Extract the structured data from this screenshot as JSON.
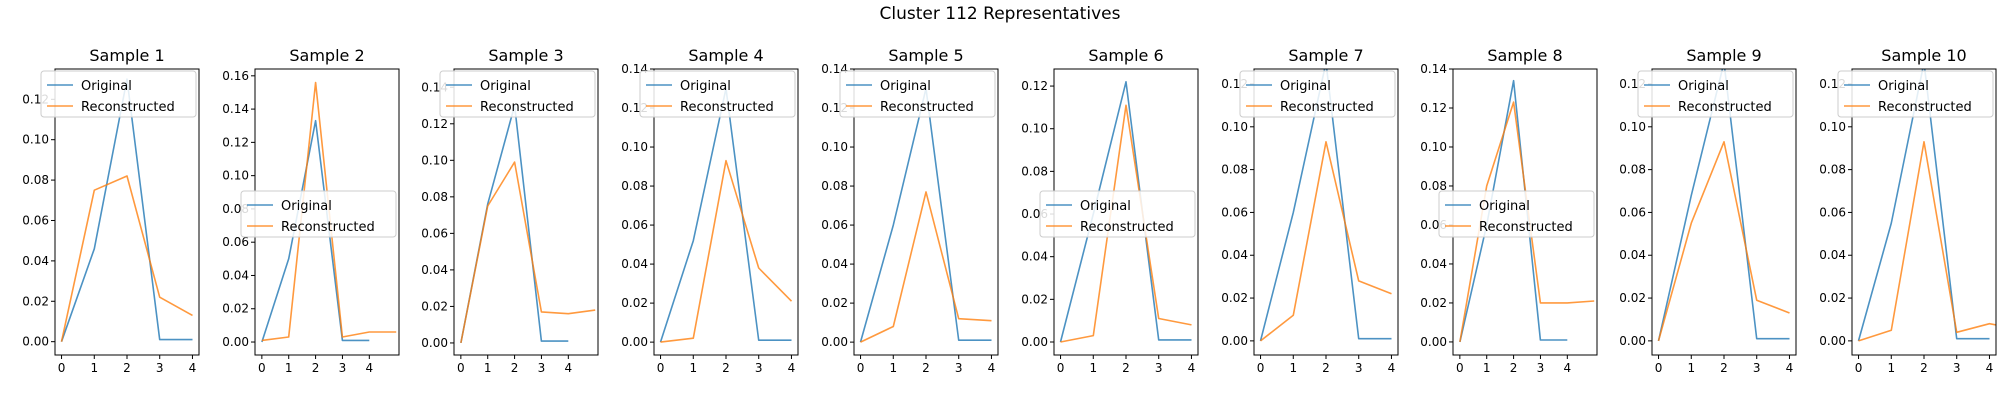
{
  "figure": {
    "title": "Cluster 112 Representatives"
  },
  "colors": {
    "original": "#1f77b4",
    "reconstructed": "#ff7f0e",
    "axes": "#000000",
    "legend_border": "#cccccc"
  },
  "chart_data": [
    {
      "type": "line",
      "title": "Sample 1",
      "legend_position": "upper left",
      "xlim": [
        -0.2,
        4.2
      ],
      "ylim": [
        -0.0066,
        0.135
      ],
      "x_ticks": [
        0,
        1,
        2,
        3,
        4
      ],
      "y_ticks": [
        0.0,
        0.02,
        0.04,
        0.06,
        0.08,
        0.1,
        0.12
      ],
      "y_tick_labels": [
        "0.00",
        "0.02",
        "0.04",
        "0.06",
        "0.08",
        "0.10",
        "0.12"
      ],
      "series": [
        {
          "name": "Original",
          "x": [
            0,
            1,
            2,
            3,
            4
          ],
          "values": [
            0.0,
            0.046,
            0.13,
            0.001,
            0.001
          ]
        },
        {
          "name": "Reconstructed",
          "x": [
            0,
            1,
            2,
            3,
            4
          ],
          "values": [
            0.0,
            0.075,
            0.082,
            0.022,
            0.013
          ]
        }
      ]
    },
    {
      "type": "line",
      "title": "Sample 2",
      "legend_position": "center left",
      "xlim": [
        -0.255,
        5.105
      ],
      "ylim": [
        -0.0078,
        0.1641
      ],
      "x_ticks": [
        0,
        1,
        2,
        3,
        4
      ],
      "y_ticks": [
        0.0,
        0.02,
        0.04,
        0.06,
        0.08,
        0.1,
        0.12,
        0.14,
        0.16
      ],
      "y_tick_labels": [
        "0.00",
        "0.02",
        "0.04",
        "0.06",
        "0.08",
        "0.10",
        "0.12",
        "0.14",
        "0.16"
      ],
      "series": [
        {
          "name": "Original",
          "x": [
            0,
            1,
            2,
            3,
            4
          ],
          "values": [
            0.0,
            0.05,
            0.133,
            0.001,
            0.001
          ]
        },
        {
          "name": "Reconstructed",
          "x": [
            0,
            1,
            2,
            3,
            4,
            5
          ],
          "values": [
            0.001,
            0.003,
            0.156,
            0.003,
            0.006,
            0.006
          ]
        }
      ]
    },
    {
      "type": "line",
      "title": "Sample 3",
      "legend_position": "upper left",
      "xlim": [
        -0.255,
        5.105
      ],
      "ylim": [
        -0.0066,
        0.15
      ],
      "x_ticks": [
        0,
        1,
        2,
        3,
        4
      ],
      "y_ticks": [
        0.0,
        0.02,
        0.04,
        0.06,
        0.08,
        0.1,
        0.12,
        0.14
      ],
      "y_tick_labels": [
        "0.00",
        "0.02",
        "0.04",
        "0.06",
        "0.08",
        "0.10",
        "0.12",
        "0.14"
      ],
      "series": [
        {
          "name": "Original",
          "x": [
            0,
            1,
            2,
            3,
            4
          ],
          "values": [
            0.0,
            0.076,
            0.13,
            0.001,
            0.001
          ]
        },
        {
          "name": "Reconstructed",
          "x": [
            0,
            1,
            2,
            3,
            4,
            5
          ],
          "values": [
            0.0,
            0.075,
            0.099,
            0.017,
            0.016,
            0.018
          ]
        }
      ]
    },
    {
      "type": "line",
      "title": "Sample 4",
      "legend_position": "upper left",
      "xlim": [
        -0.2,
        4.2
      ],
      "ylim": [
        -0.0066,
        0.14
      ],
      "x_ticks": [
        0,
        1,
        2,
        3,
        4
      ],
      "y_ticks": [
        0.0,
        0.02,
        0.04,
        0.06,
        0.08,
        0.1,
        0.12,
        0.14
      ],
      "y_tick_labels": [
        "0.00",
        "0.02",
        "0.04",
        "0.06",
        "0.08",
        "0.10",
        "0.12",
        "0.14"
      ],
      "series": [
        {
          "name": "Original",
          "x": [
            0,
            1,
            2,
            3,
            4
          ],
          "values": [
            0.0,
            0.052,
            0.13,
            0.001,
            0.001
          ]
        },
        {
          "name": "Reconstructed",
          "x": [
            0,
            1,
            2,
            3,
            4
          ],
          "values": [
            0.0,
            0.002,
            0.093,
            0.038,
            0.021
          ]
        }
      ]
    },
    {
      "type": "line",
      "title": "Sample 5",
      "legend_position": "upper left",
      "xlim": [
        -0.2,
        4.2
      ],
      "ylim": [
        -0.0066,
        0.14
      ],
      "x_ticks": [
        0,
        1,
        2,
        3,
        4
      ],
      "y_ticks": [
        0.0,
        0.02,
        0.04,
        0.06,
        0.08,
        0.1,
        0.12,
        0.14
      ],
      "y_tick_labels": [
        "0.00",
        "0.02",
        "0.04",
        "0.06",
        "0.08",
        "0.10",
        "0.12",
        "0.14"
      ],
      "series": [
        {
          "name": "Original",
          "x": [
            0,
            1,
            2,
            3,
            4
          ],
          "values": [
            0.0,
            0.06,
            0.13,
            0.001,
            0.001
          ]
        },
        {
          "name": "Reconstructed",
          "x": [
            0,
            1,
            2,
            3,
            4
          ],
          "values": [
            0.0,
            0.008,
            0.077,
            0.012,
            0.011
          ]
        }
      ]
    },
    {
      "type": "line",
      "title": "Sample 6",
      "legend_position": "center left",
      "xlim": [
        -0.2,
        4.2
      ],
      "ylim": [
        -0.0061,
        0.128
      ],
      "x_ticks": [
        0,
        1,
        2,
        3,
        4
      ],
      "y_ticks": [
        0.0,
        0.02,
        0.04,
        0.06,
        0.08,
        0.1,
        0.12
      ],
      "y_tick_labels": [
        "0.00",
        "0.02",
        "0.04",
        "0.06",
        "0.08",
        "0.10",
        "0.12"
      ],
      "series": [
        {
          "name": "Original",
          "x": [
            0,
            1,
            2,
            3,
            4
          ],
          "values": [
            0.0,
            0.06,
            0.122,
            0.001,
            0.001
          ]
        },
        {
          "name": "Reconstructed",
          "x": [
            0,
            1,
            2,
            3,
            4
          ],
          "values": [
            0.0,
            0.003,
            0.111,
            0.011,
            0.008
          ]
        }
      ]
    },
    {
      "type": "line",
      "title": "Sample 7",
      "legend_position": "upper left",
      "xlim": [
        -0.2,
        4.2
      ],
      "ylim": [
        -0.0066,
        0.127
      ],
      "x_ticks": [
        0,
        1,
        2,
        3,
        4
      ],
      "y_ticks": [
        0.0,
        0.02,
        0.04,
        0.06,
        0.08,
        0.1,
        0.12
      ],
      "y_tick_labels": [
        "0.00",
        "0.02",
        "0.04",
        "0.06",
        "0.08",
        "0.10",
        "0.12"
      ],
      "series": [
        {
          "name": "Original",
          "x": [
            0,
            1,
            2,
            3,
            4
          ],
          "values": [
            0.0,
            0.06,
            0.13,
            0.001,
            0.001
          ]
        },
        {
          "name": "Reconstructed",
          "x": [
            0,
            1,
            2,
            3,
            4
          ],
          "values": [
            0.0,
            0.012,
            0.093,
            0.028,
            0.022
          ]
        }
      ]
    },
    {
      "type": "line",
      "title": "Sample 8",
      "legend_position": "center left",
      "xlim": [
        -0.255,
        5.105
      ],
      "ylim": [
        -0.0067,
        0.14
      ],
      "x_ticks": [
        0,
        1,
        2,
        3,
        4
      ],
      "y_ticks": [
        0.0,
        0.02,
        0.04,
        0.06,
        0.08,
        0.1,
        0.12,
        0.14
      ],
      "y_tick_labels": [
        "0.00",
        "0.02",
        "0.04",
        "0.06",
        "0.08",
        "0.10",
        "0.12",
        "0.14"
      ],
      "series": [
        {
          "name": "Original",
          "x": [
            0,
            1,
            2,
            3,
            4
          ],
          "values": [
            0.0,
            0.06,
            0.134,
            0.001,
            0.001
          ]
        },
        {
          "name": "Reconstructed",
          "x": [
            0,
            1,
            2,
            3,
            4,
            5
          ],
          "values": [
            0.0,
            0.08,
            0.123,
            0.02,
            0.02,
            0.021
          ]
        }
      ]
    },
    {
      "type": "line",
      "title": "Sample 9",
      "legend_position": "upper left",
      "xlim": [
        -0.2,
        4.2
      ],
      "ylim": [
        -0.0066,
        0.127
      ],
      "x_ticks": [
        0,
        1,
        2,
        3,
        4
      ],
      "y_ticks": [
        0.0,
        0.02,
        0.04,
        0.06,
        0.08,
        0.1,
        0.12
      ],
      "y_tick_labels": [
        "0.00",
        "0.02",
        "0.04",
        "0.06",
        "0.08",
        "0.10",
        "0.12"
      ],
      "series": [
        {
          "name": "Original",
          "x": [
            0,
            1,
            2,
            3,
            4
          ],
          "values": [
            0.0,
            0.068,
            0.13,
            0.001,
            0.001
          ]
        },
        {
          "name": "Reconstructed",
          "x": [
            0,
            1,
            2,
            3,
            4
          ],
          "values": [
            0.0,
            0.055,
            0.093,
            0.019,
            0.013
          ]
        }
      ]
    },
    {
      "type": "line",
      "title": "Sample 10",
      "legend_position": "upper left",
      "xlim": [
        -0.2,
        4.2
      ],
      "ylim": [
        -0.0066,
        0.127
      ],
      "x_ticks": [
        0,
        1,
        2,
        3,
        4
      ],
      "y_ticks": [
        0.0,
        0.02,
        0.04,
        0.06,
        0.08,
        0.1,
        0.12
      ],
      "y_tick_labels": [
        "0.00",
        "0.02",
        "0.04",
        "0.06",
        "0.08",
        "0.10",
        "0.12"
      ],
      "series": [
        {
          "name": "Original",
          "x": [
            0,
            1,
            2,
            3,
            4
          ],
          "values": [
            0.0,
            0.055,
            0.13,
            0.001,
            0.001
          ]
        },
        {
          "name": "Reconstructed",
          "x": [
            0,
            1,
            2,
            3,
            4,
            5
          ],
          "values": [
            0.0,
            0.005,
            0.093,
            0.004,
            0.008,
            0.005
          ]
        }
      ]
    }
  ]
}
